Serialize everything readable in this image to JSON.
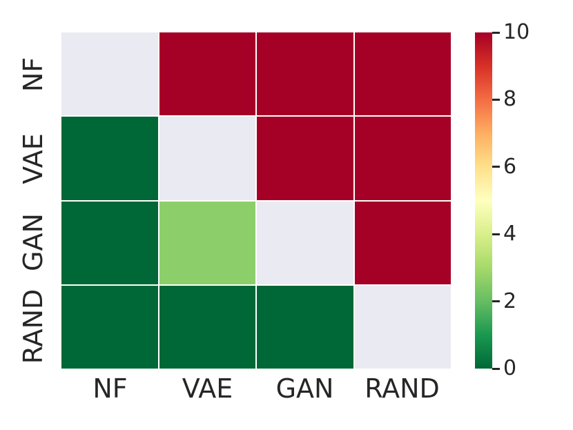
{
  "chart_data": {
    "type": "heatmap",
    "title": "",
    "xlabel": "",
    "ylabel": "",
    "x_categories": [
      "NF",
      "VAE",
      "GAN",
      "RAND"
    ],
    "y_categories": [
      "NF",
      "VAE",
      "GAN",
      "RAND"
    ],
    "matrix": [
      [
        null,
        10,
        10,
        10
      ],
      [
        0,
        null,
        10,
        10
      ],
      [
        0,
        2.7,
        null,
        10
      ],
      [
        0,
        0,
        0,
        null
      ]
    ],
    "diagonal_masked": true,
    "cell_colors": [
      [
        "#EAEAF2",
        "#A50026",
        "#A50026",
        "#A50026"
      ],
      [
        "#006837",
        "#EAEAF2",
        "#A50026",
        "#A50026"
      ],
      [
        "#006837",
        "#8CCF6A",
        "#EAEAF2",
        "#A50026"
      ],
      [
        "#006837",
        "#006837",
        "#006837",
        "#EAEAF2"
      ]
    ],
    "colorbar": {
      "min": 0,
      "max": 10,
      "tick_values": [
        10,
        8,
        6,
        4,
        2,
        0
      ],
      "tick_labels": [
        "10",
        "8",
        "6",
        "4",
        "2",
        "0"
      ],
      "colormap_name": "RdYlGn_r",
      "gradient_stops_bottom_to_top": [
        "#006837",
        "#1A9850",
        "#66BD63",
        "#A6D96A",
        "#D9EF8B",
        "#FFFFBF",
        "#FEE08B",
        "#FDAE61",
        "#F46D43",
        "#D73027",
        "#A50026"
      ]
    },
    "grid_on": true,
    "gridline_color": "#FFFFFF",
    "legend_position": "right-colorbar"
  },
  "palette": {
    "background": "#FFFFFF",
    "masked_cell": "#EAEAF2",
    "value_high": "#A50026",
    "value_low": "#006837",
    "value_mid_cell": "#8CCF6A",
    "text": "#262626"
  }
}
